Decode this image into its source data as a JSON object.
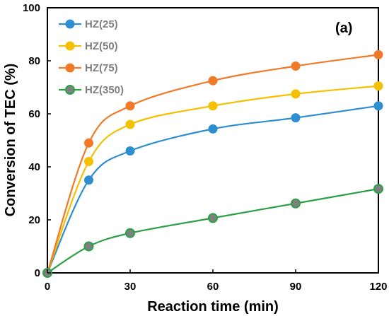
{
  "chart_data": {
    "type": "line",
    "xlabel": "Reaction time (min)",
    "ylabel": "Conversion of TEC (%)",
    "panel_label": "(a)",
    "xlim": [
      0,
      120
    ],
    "ylim": [
      0,
      100
    ],
    "xticks": [
      0,
      30,
      60,
      90,
      120
    ],
    "yticks": [
      0,
      20,
      40,
      60,
      80,
      100
    ],
    "grid": false,
    "legend_position": "top-left",
    "x": [
      0,
      15,
      30,
      60,
      90,
      120
    ],
    "series": [
      {
        "name": "HZ(25)",
        "color": "#2e8fd0",
        "values": [
          0,
          35,
          46,
          54.3,
          58.5,
          63
        ]
      },
      {
        "name": "HZ(50)",
        "color": "#f5c000",
        "values": [
          0,
          42,
          56,
          63,
          67.5,
          70.5
        ]
      },
      {
        "name": "HZ(75)",
        "color": "#f07a28",
        "values": [
          0,
          49,
          63,
          72.5,
          78,
          82.3
        ]
      },
      {
        "name": "HZ(350)",
        "color": "#2aa147",
        "marker_fill": "#7f7f7f",
        "values": [
          0,
          10,
          15,
          20.7,
          26.2,
          31.7
        ]
      }
    ]
  }
}
